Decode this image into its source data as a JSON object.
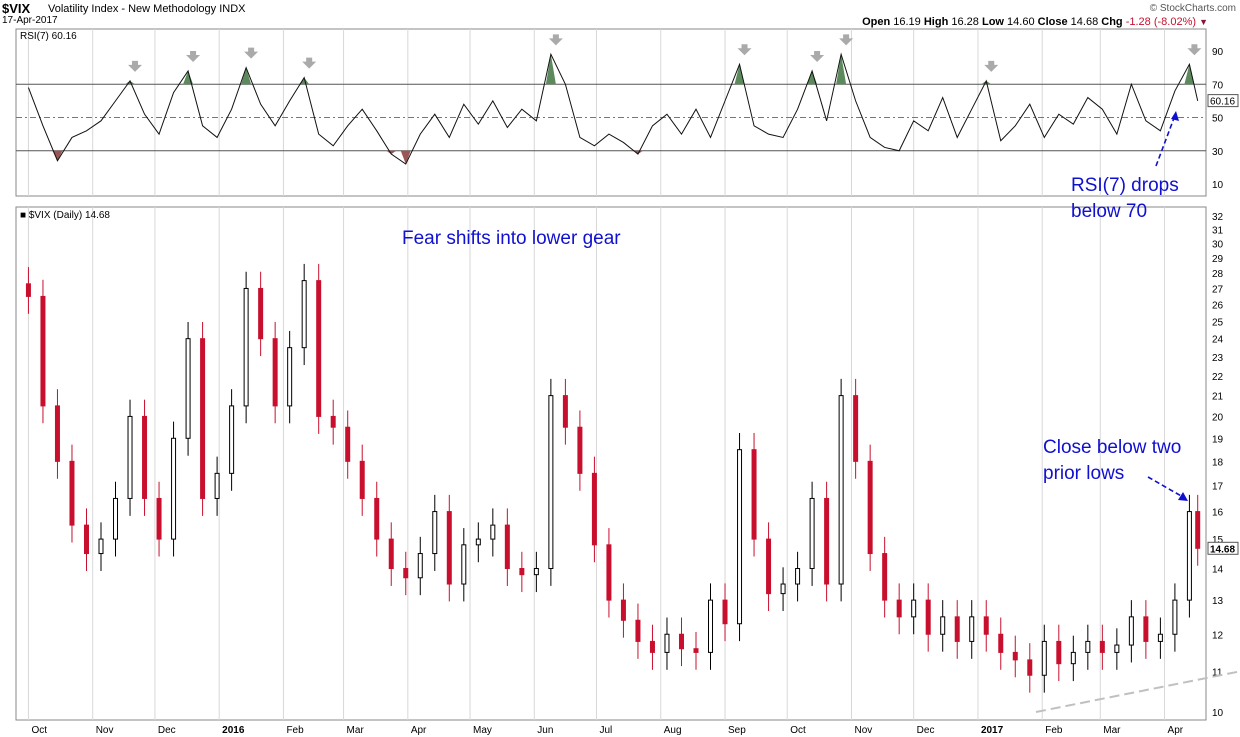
{
  "header": {
    "symbol": "$VIX",
    "description": "Volatility Index - New Methodology",
    "exchange": "INDX",
    "date": "17-Apr-2017",
    "brand": "© StockCharts.com",
    "open_label": "Open",
    "open": "16.19",
    "high_label": "High",
    "high": "16.28",
    "low_label": "Low",
    "low": "14.60",
    "close_label": "Close",
    "close": "14.68",
    "chg_label": "Chg",
    "chg": "-1.28 (-8.02%)"
  },
  "colors": {
    "down_candle": "#c8102e",
    "up_candle": "#000000",
    "overbought_fill": "#5c8a5c",
    "oversold_fill": "#9b5555",
    "annotation": "#1010d0",
    "grid": "#d8d8d8",
    "marker_arrow": "#aaaaaa",
    "trendline": "#c0c0c0"
  },
  "annotations": {
    "fear": "Fear shifts into lower gear",
    "close_line1": "Close below two",
    "close_line2": "prior lows",
    "rsi_line1": "RSI(7) drops",
    "rsi_line2": "below 70"
  },
  "chart_data": [
    {
      "type": "line",
      "title": "RSI(7) 60.16",
      "series_label": "RSI(7)",
      "last_value": 60.16,
      "ylim": [
        0,
        100
      ],
      "y_ticks": [
        10,
        30,
        50,
        70,
        90
      ],
      "reference_lines": [
        30,
        50,
        70
      ],
      "marker": "down-arrow at RSI peaks above 70",
      "x": [
        "2015-10-01",
        "2015-10-08",
        "2015-10-15",
        "2015-10-22",
        "2015-10-29",
        "2015-11-05",
        "2015-11-12",
        "2015-11-19",
        "2015-11-26",
        "2015-12-03",
        "2015-12-10",
        "2015-12-17",
        "2015-12-24",
        "2015-12-31",
        "2016-01-07",
        "2016-01-14",
        "2016-01-21",
        "2016-01-28",
        "2016-02-04",
        "2016-02-11",
        "2016-02-18",
        "2016-02-25",
        "2016-03-03",
        "2016-03-10",
        "2016-03-17",
        "2016-03-24",
        "2016-03-31",
        "2016-04-07",
        "2016-04-14",
        "2016-04-21",
        "2016-04-28",
        "2016-05-05",
        "2016-05-12",
        "2016-05-19",
        "2016-05-26",
        "2016-06-02",
        "2016-06-09",
        "2016-06-16",
        "2016-06-23",
        "2016-06-30",
        "2016-07-07",
        "2016-07-14",
        "2016-07-21",
        "2016-07-28",
        "2016-08-04",
        "2016-08-11",
        "2016-08-18",
        "2016-08-25",
        "2016-09-01",
        "2016-09-08",
        "2016-09-15",
        "2016-09-22",
        "2016-09-29",
        "2016-10-06",
        "2016-10-13",
        "2016-10-20",
        "2016-10-27",
        "2016-11-03",
        "2016-11-10",
        "2016-11-17",
        "2016-11-24",
        "2016-12-01",
        "2016-12-08",
        "2016-12-15",
        "2016-12-22",
        "2016-12-29",
        "2017-01-05",
        "2017-01-12",
        "2017-01-19",
        "2017-01-26",
        "2017-02-02",
        "2017-02-09",
        "2017-02-16",
        "2017-02-23",
        "2017-03-02",
        "2017-03-09",
        "2017-03-16",
        "2017-03-23",
        "2017-03-30",
        "2017-04-06",
        "2017-04-13",
        "2017-04-17"
      ],
      "values": [
        68,
        45,
        24,
        38,
        42,
        48,
        60,
        72,
        52,
        40,
        65,
        78,
        45,
        38,
        55,
        80,
        58,
        45,
        60,
        74,
        40,
        33,
        45,
        55,
        42,
        28,
        22,
        40,
        52,
        38,
        58,
        46,
        60,
        44,
        55,
        48,
        88,
        70,
        38,
        33,
        40,
        35,
        28,
        45,
        52,
        40,
        55,
        38,
        60,
        82,
        45,
        40,
        38,
        55,
        78,
        48,
        88,
        60,
        38,
        32,
        30,
        48,
        42,
        62,
        38,
        55,
        72,
        36,
        45,
        58,
        38,
        52,
        46,
        62,
        55,
        40,
        70,
        48,
        42,
        66,
        82,
        60
      ],
      "xlabel": "",
      "ylabel": "",
      "grid": "vertical month lines"
    },
    {
      "type": "candlestick",
      "title": "$VIX (Daily) 14.68",
      "series_label": "$VIX (Daily)",
      "last_value": 14.68,
      "ylim": [
        10,
        32
      ],
      "y_scale": "log",
      "y_ticks": [
        10,
        11,
        12,
        13,
        14,
        15,
        16,
        17,
        18,
        19,
        20,
        21,
        22,
        23,
        24,
        25,
        26,
        27,
        28,
        29,
        30,
        31,
        32
      ],
      "x_ticks": [
        {
          "label": "Oct",
          "date": "2015-10-01",
          "bold": false
        },
        {
          "label": "Nov",
          "date": "2015-11-01",
          "bold": false
        },
        {
          "label": "Dec",
          "date": "2015-12-01",
          "bold": false
        },
        {
          "label": "2016",
          "date": "2016-01-01",
          "bold": true
        },
        {
          "label": "Feb",
          "date": "2016-02-01",
          "bold": false
        },
        {
          "label": "Mar",
          "date": "2016-03-01",
          "bold": false
        },
        {
          "label": "Apr",
          "date": "2016-04-01",
          "bold": false
        },
        {
          "label": "May",
          "date": "2016-05-01",
          "bold": false
        },
        {
          "label": "Jun",
          "date": "2016-06-01",
          "bold": false
        },
        {
          "label": "Jul",
          "date": "2016-07-01",
          "bold": false
        },
        {
          "label": "Aug",
          "date": "2016-08-01",
          "bold": false
        },
        {
          "label": "Sep",
          "date": "2016-09-01",
          "bold": false
        },
        {
          "label": "Oct",
          "date": "2016-10-01",
          "bold": false
        },
        {
          "label": "Nov",
          "date": "2016-11-01",
          "bold": false
        },
        {
          "label": "Dec",
          "date": "2016-12-01",
          "bold": false
        },
        {
          "label": "2017",
          "date": "2017-01-01",
          "bold": true
        },
        {
          "label": "Feb",
          "date": "2017-02-01",
          "bold": false
        },
        {
          "label": "Mar",
          "date": "2017-03-01",
          "bold": false
        },
        {
          "label": "Apr",
          "date": "2017-04-01",
          "bold": false
        }
      ],
      "x": [
        "2015-10-01",
        "2015-10-08",
        "2015-10-15",
        "2015-10-22",
        "2015-10-29",
        "2015-11-05",
        "2015-11-12",
        "2015-11-19",
        "2015-11-26",
        "2015-12-03",
        "2015-12-10",
        "2015-12-17",
        "2015-12-24",
        "2015-12-31",
        "2016-01-07",
        "2016-01-14",
        "2016-01-21",
        "2016-01-28",
        "2016-02-04",
        "2016-02-11",
        "2016-02-18",
        "2016-02-25",
        "2016-03-03",
        "2016-03-10",
        "2016-03-17",
        "2016-03-24",
        "2016-03-31",
        "2016-04-07",
        "2016-04-14",
        "2016-04-21",
        "2016-04-28",
        "2016-05-05",
        "2016-05-12",
        "2016-05-19",
        "2016-05-26",
        "2016-06-02",
        "2016-06-09",
        "2016-06-16",
        "2016-06-23",
        "2016-06-30",
        "2016-07-07",
        "2016-07-14",
        "2016-07-21",
        "2016-07-28",
        "2016-08-04",
        "2016-08-11",
        "2016-08-18",
        "2016-08-25",
        "2016-09-01",
        "2016-09-08",
        "2016-09-15",
        "2016-09-22",
        "2016-09-29",
        "2016-10-06",
        "2016-10-13",
        "2016-10-20",
        "2016-10-27",
        "2016-11-03",
        "2016-11-10",
        "2016-11-17",
        "2016-11-24",
        "2016-12-01",
        "2016-12-08",
        "2016-12-15",
        "2016-12-22",
        "2016-12-29",
        "2017-01-05",
        "2017-01-12",
        "2017-01-19",
        "2017-01-26",
        "2017-02-02",
        "2017-02-09",
        "2017-02-16",
        "2017-02-23",
        "2017-03-02",
        "2017-03-09",
        "2017-03-16",
        "2017-03-23",
        "2017-03-30",
        "2017-04-06",
        "2017-04-13",
        "2017-04-17"
      ],
      "values": [
        26.5,
        20.5,
        18.0,
        15.5,
        14.5,
        15.0,
        16.5,
        20.0,
        16.5,
        15.0,
        19.0,
        24.0,
        16.5,
        17.5,
        20.5,
        27.0,
        24.0,
        20.5,
        23.5,
        27.5,
        20.0,
        19.5,
        18.0,
        16.5,
        15.0,
        14.0,
        13.7,
        14.5,
        16.0,
        13.5,
        14.8,
        15.0,
        15.5,
        14.0,
        13.8,
        14.0,
        21.0,
        19.5,
        17.5,
        14.8,
        13.0,
        12.4,
        11.8,
        11.5,
        12.0,
        11.6,
        11.5,
        13.0,
        12.3,
        18.5,
        15.0,
        13.2,
        13.5,
        14.0,
        16.5,
        13.5,
        21.0,
        18.0,
        14.5,
        13.0,
        12.5,
        13.0,
        12.0,
        12.5,
        11.8,
        12.5,
        12.0,
        11.5,
        11.3,
        10.9,
        11.8,
        11.2,
        11.5,
        11.8,
        11.5,
        11.7,
        12.5,
        11.8,
        12.0,
        13.0,
        16.0,
        14.68
      ],
      "xlabel": "",
      "ylabel": "",
      "grid": "vertical month lines",
      "trendline": {
        "style": "dashed",
        "from": {
          "date": "2017-01-29",
          "value": 10.0
        },
        "to": {
          "date": "2017-04-28",
          "value": 11.0
        }
      }
    }
  ]
}
